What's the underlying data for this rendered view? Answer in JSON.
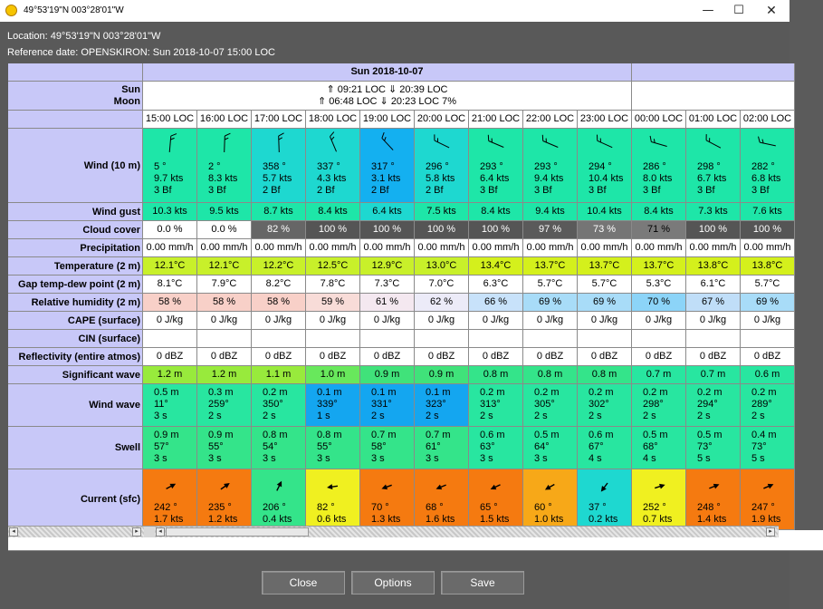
{
  "window": {
    "title": "49°53'19\"N  003°28'01\"W",
    "icon": "sun-icon",
    "controls": {
      "minimize": "—",
      "maximize": "☐",
      "close": "✕"
    }
  },
  "info": {
    "location": "Location:  49°53'19\"N  003°28'01\"W",
    "reference": "Reference date: OPENSKIRON: Sun 2018-10-07 15:00 LOC"
  },
  "table": {
    "day_header": "Sun 2018-10-07",
    "sun_label": "Sun",
    "moon_label": "Moon",
    "sun_text": "⇑ 09:21 LOC ⇓ 20:39 LOC",
    "moon_text": "⇑ 06:48 LOC ⇓ 20:23 LOC   7%",
    "row_labels": {
      "wind": "Wind (10 m)",
      "gust": "Wind gust",
      "cloud": "Cloud cover",
      "precip": "Precipitation",
      "temp": "Temperature (2 m)",
      "gap": "Gap temp-dew point (2 m)",
      "rh": "Relative humidity (2 m)",
      "cape": "CAPE (surface)",
      "cin": "CIN (surface)",
      "refl": "Reflectivity (entire atmos)",
      "sigwave": "Significant wave",
      "windwave": "Wind wave",
      "swell": "Swell",
      "current": "Current (sfc)"
    },
    "columns": [
      {
        "time": "15:00 LOC",
        "wind": {
          "dir": "5 °",
          "speed": "9.7  kts",
          "bf": "3 Bf",
          "deg": 5,
          "bg": "#1ee6a8"
        },
        "gust": {
          "v": "10.3  kts",
          "bg": "#1ee6a8"
        },
        "cloud": {
          "v": "0.0 %",
          "bg": "#ffffff"
        },
        "precip": "0.00 mm/h",
        "temp": {
          "v": "12.1°C",
          "bg": "#c8f02a"
        },
        "gap": "8.1°C",
        "rh": {
          "v": "58 %",
          "bg": "#f8d0c8"
        },
        "cape": "0 J/kg",
        "cin": "",
        "refl": "0 dBZ",
        "sigwave": {
          "v": "1.2 m",
          "bg": "#98ea3c"
        },
        "windwave": {
          "h": "0.5 m",
          "d": "11°",
          "p": "3 s",
          "bg": "#28e6a0"
        },
        "swell": {
          "h": "0.9 m",
          "d": "57°",
          "p": "3 s",
          "bg": "#34e48a"
        },
        "current": {
          "d": "242 °",
          "s": "1.7  kts",
          "deg": 242,
          "bg": "#f57a10"
        }
      },
      {
        "time": "16:00 LOC",
        "wind": {
          "dir": "2 °",
          "speed": "8.3  kts",
          "bf": "3 Bf",
          "deg": 2,
          "bg": "#1ee6a8"
        },
        "gust": {
          "v": "9.5  kts",
          "bg": "#1ee6a8"
        },
        "cloud": {
          "v": "0.0 %",
          "bg": "#ffffff"
        },
        "precip": "0.00 mm/h",
        "temp": {
          "v": "12.1°C",
          "bg": "#c8f02a"
        },
        "gap": "7.9°C",
        "rh": {
          "v": "58 %",
          "bg": "#f8d0c8"
        },
        "cape": "0 J/kg",
        "cin": "",
        "refl": "0 dBZ",
        "sigwave": {
          "v": "1.2 m",
          "bg": "#98ea3c"
        },
        "windwave": {
          "h": "0.3 m",
          "d": "259°",
          "p": "2 s",
          "bg": "#28e6a0"
        },
        "swell": {
          "h": "0.9 m",
          "d": "55°",
          "p": "3 s",
          "bg": "#34e48a"
        },
        "current": {
          "d": "235 °",
          "s": "1.2  kts",
          "deg": 235,
          "bg": "#f57a10"
        }
      },
      {
        "time": "17:00 LOC",
        "wind": {
          "dir": "358 °",
          "speed": "5.7  kts",
          "bf": "2 Bf",
          "deg": 358,
          "bg": "#1ed8d0"
        },
        "gust": {
          "v": "8.7  kts",
          "bg": "#1ee6a8"
        },
        "cloud": {
          "v": "82 %",
          "bg": "#666666",
          "fg": "#ffffff"
        },
        "precip": "0.00 mm/h",
        "temp": {
          "v": "12.2°C",
          "bg": "#c8f02a"
        },
        "gap": "8.2°C",
        "rh": {
          "v": "58 %",
          "bg": "#f8d0c8"
        },
        "cape": "0 J/kg",
        "cin": "",
        "refl": "0 dBZ",
        "sigwave": {
          "v": "1.1 m",
          "bg": "#98ea3c"
        },
        "windwave": {
          "h": "0.2 m",
          "d": "350°",
          "p": "2 s",
          "bg": "#28e6a0"
        },
        "swell": {
          "h": "0.8 m",
          "d": "54°",
          "p": "3 s",
          "bg": "#34e48a"
        },
        "current": {
          "d": "206 °",
          "s": "0.4  kts",
          "deg": 206,
          "bg": "#34e48a"
        }
      },
      {
        "time": "18:00 LOC",
        "wind": {
          "dir": "337 °",
          "speed": "4.3  kts",
          "bf": "2 Bf",
          "deg": 337,
          "bg": "#1ed8d0"
        },
        "gust": {
          "v": "8.4  kts",
          "bg": "#1ee6a8"
        },
        "cloud": {
          "v": "100 %",
          "bg": "#555555",
          "fg": "#ffffff"
        },
        "precip": "0.00 mm/h",
        "temp": {
          "v": "12.5°C",
          "bg": "#c8f02a"
        },
        "gap": "7.8°C",
        "rh": {
          "v": "59 %",
          "bg": "#f8dcd8"
        },
        "cape": "0 J/kg",
        "cin": "",
        "refl": "0 dBZ",
        "sigwave": {
          "v": "1.0 m",
          "bg": "#68e85c"
        },
        "windwave": {
          "h": "0.1 m",
          "d": "339°",
          "p": "1 s",
          "bg": "#14a6f0"
        },
        "swell": {
          "h": "0.8 m",
          "d": "55°",
          "p": "3 s",
          "bg": "#34e48a"
        },
        "current": {
          "d": "82 °",
          "s": "0.6  kts",
          "deg": 82,
          "bg": "#f0f020"
        }
      },
      {
        "time": "19:00 LOC",
        "wind": {
          "dir": "317 °",
          "speed": "3.1  kts",
          "bf": "2 Bf",
          "deg": 317,
          "bg": "#14b0f0"
        },
        "gust": {
          "v": "6.4  kts",
          "bg": "#1ed8d0"
        },
        "cloud": {
          "v": "100 %",
          "bg": "#555555",
          "fg": "#ffffff"
        },
        "precip": "0.00 mm/h",
        "temp": {
          "v": "12.9°C",
          "bg": "#c8f02a"
        },
        "gap": "7.3°C",
        "rh": {
          "v": "61 %",
          "bg": "#f4e8f0"
        },
        "cape": "0 J/kg",
        "cin": "",
        "refl": "0 dBZ",
        "sigwave": {
          "v": "0.9 m",
          "bg": "#40e27a"
        },
        "windwave": {
          "h": "0.1 m",
          "d": "331°",
          "p": "2 s",
          "bg": "#14a6f0"
        },
        "swell": {
          "h": "0.7 m",
          "d": "58°",
          "p": "3 s",
          "bg": "#34e48a"
        },
        "current": {
          "d": "70 °",
          "s": "1.3  kts",
          "deg": 70,
          "bg": "#f57a10"
        }
      },
      {
        "time": "20:00 LOC",
        "wind": {
          "dir": "296 °",
          "speed": "5.8  kts",
          "bf": "2 Bf",
          "deg": 296,
          "bg": "#1ed8d0"
        },
        "gust": {
          "v": "7.5  kts",
          "bg": "#1ee6a8"
        },
        "cloud": {
          "v": "100 %",
          "bg": "#555555",
          "fg": "#ffffff"
        },
        "precip": "0.00 mm/h",
        "temp": {
          "v": "13.0°C",
          "bg": "#c8f02a"
        },
        "gap": "7.0°C",
        "rh": {
          "v": "62 %",
          "bg": "#ecebf8"
        },
        "cape": "0 J/kg",
        "cin": "",
        "refl": "0 dBZ",
        "sigwave": {
          "v": "0.9 m",
          "bg": "#40e27a"
        },
        "windwave": {
          "h": "0.1 m",
          "d": "323°",
          "p": "2 s",
          "bg": "#14a6f0"
        },
        "swell": {
          "h": "0.7 m",
          "d": "61°",
          "p": "3 s",
          "bg": "#34e48a"
        },
        "current": {
          "d": "68 °",
          "s": "1.6  kts",
          "deg": 68,
          "bg": "#f57a10"
        }
      },
      {
        "time": "21:00 LOC",
        "wind": {
          "dir": "293 °",
          "speed": "6.4  kts",
          "bf": "3 Bf",
          "deg": 293,
          "bg": "#1ee6a8"
        },
        "gust": {
          "v": "8.4  kts",
          "bg": "#1ee6a8"
        },
        "cloud": {
          "v": "100 %",
          "bg": "#555555",
          "fg": "#ffffff"
        },
        "precip": "0.00 mm/h",
        "temp": {
          "v": "13.4°C",
          "bg": "#d4f01c"
        },
        "gap": "6.3°C",
        "rh": {
          "v": "66 %",
          "bg": "#c8e2fa"
        },
        "cape": "0 J/kg",
        "cin": "",
        "refl": "0 dBZ",
        "sigwave": {
          "v": "0.8 m",
          "bg": "#34e48a"
        },
        "windwave": {
          "h": "0.2 m",
          "d": "313°",
          "p": "2 s",
          "bg": "#28e6a0"
        },
        "swell": {
          "h": "0.6 m",
          "d": "63°",
          "p": "3 s",
          "bg": "#28e6a0"
        },
        "current": {
          "d": "65 °",
          "s": "1.5  kts",
          "deg": 65,
          "bg": "#f57a10"
        }
      },
      {
        "time": "22:00 LOC",
        "wind": {
          "dir": "293 °",
          "speed": "9.4  kts",
          "bf": "3 Bf",
          "deg": 293,
          "bg": "#1ee6a8"
        },
        "gust": {
          "v": "9.4  kts",
          "bg": "#1ee6a8"
        },
        "cloud": {
          "v": "97 %",
          "bg": "#5a5a5a",
          "fg": "#ffffff"
        },
        "precip": "0.00 mm/h",
        "temp": {
          "v": "13.7°C",
          "bg": "#d4f01c"
        },
        "gap": "5.7°C",
        "rh": {
          "v": "69 %",
          "bg": "#a8dcf8"
        },
        "cape": "0 J/kg",
        "cin": "",
        "refl": "0 dBZ",
        "sigwave": {
          "v": "0.8 m",
          "bg": "#34e48a"
        },
        "windwave": {
          "h": "0.2 m",
          "d": "305°",
          "p": "2 s",
          "bg": "#28e6a0"
        },
        "swell": {
          "h": "0.5 m",
          "d": "64°",
          "p": "3 s",
          "bg": "#28e6a0"
        },
        "current": {
          "d": "60 °",
          "s": "1.0  kts",
          "deg": 60,
          "bg": "#f7a818"
        }
      },
      {
        "time": "23:00 LOC",
        "wind": {
          "dir": "294 °",
          "speed": "10.4  kts",
          "bf": "3 Bf",
          "deg": 294,
          "bg": "#1ee6a8"
        },
        "gust": {
          "v": "10.4  kts",
          "bg": "#1ee6a8"
        },
        "cloud": {
          "v": "73 %",
          "bg": "#757575",
          "fg": "#ffffff"
        },
        "precip": "0.00 mm/h",
        "temp": {
          "v": "13.7°C",
          "bg": "#d4f01c"
        },
        "gap": "5.7°C",
        "rh": {
          "v": "69 %",
          "bg": "#a8dcf8"
        },
        "cape": "0 J/kg",
        "cin": "",
        "refl": "0 dBZ",
        "sigwave": {
          "v": "0.8 m",
          "bg": "#34e48a"
        },
        "windwave": {
          "h": "0.2 m",
          "d": "302°",
          "p": "2 s",
          "bg": "#28e6a0"
        },
        "swell": {
          "h": "0.6 m",
          "d": "67°",
          "p": "4 s",
          "bg": "#28e6a0"
        },
        "current": {
          "d": "37 °",
          "s": "0.2  kts",
          "deg": 37,
          "bg": "#1ed8d0"
        }
      },
      {
        "time": "00:00 LOC",
        "wind": {
          "dir": "286 °",
          "speed": "8.0  kts",
          "bf": "3 Bf",
          "deg": 286,
          "bg": "#1ee6a8"
        },
        "gust": {
          "v": "8.4  kts",
          "bg": "#1ee6a8"
        },
        "cloud": {
          "v": "71 %",
          "bg": "#7a7a7a",
          "fg": "#000000"
        },
        "precip": "0.00 mm/h",
        "temp": {
          "v": "13.7°C",
          "bg": "#d4f01c"
        },
        "gap": "5.3°C",
        "rh": {
          "v": "70 %",
          "bg": "#8cd4f8"
        },
        "cape": "0 J/kg",
        "cin": "",
        "refl": "0 dBZ",
        "sigwave": {
          "v": "0.7 m",
          "bg": "#28e6a0"
        },
        "windwave": {
          "h": "0.2 m",
          "d": "298°",
          "p": "2 s",
          "bg": "#28e6a0"
        },
        "swell": {
          "h": "0.5 m",
          "d": "68°",
          "p": "4 s",
          "bg": "#28e6a0"
        },
        "current": {
          "d": "252 °",
          "s": "0.7  kts",
          "deg": 252,
          "bg": "#f0f020"
        }
      },
      {
        "time": "01:00 LOC",
        "wind": {
          "dir": "298 °",
          "speed": "6.7  kts",
          "bf": "3 Bf",
          "deg": 298,
          "bg": "#1ee6a8"
        },
        "gust": {
          "v": "7.3  kts",
          "bg": "#1ee6a8"
        },
        "cloud": {
          "v": "100 %",
          "bg": "#555555",
          "fg": "#ffffff"
        },
        "precip": "0.00 mm/h",
        "temp": {
          "v": "13.8°C",
          "bg": "#d4f01c"
        },
        "gap": "6.1°C",
        "rh": {
          "v": "67 %",
          "bg": "#c0def8"
        },
        "cape": "0 J/kg",
        "cin": "",
        "refl": "0 dBZ",
        "sigwave": {
          "v": "0.7 m",
          "bg": "#28e6a0"
        },
        "windwave": {
          "h": "0.2 m",
          "d": "294°",
          "p": "2 s",
          "bg": "#28e6a0"
        },
        "swell": {
          "h": "0.5 m",
          "d": "73°",
          "p": "5 s",
          "bg": "#28e6a0"
        },
        "current": {
          "d": "248 °",
          "s": "1.4  kts",
          "deg": 248,
          "bg": "#f57a10"
        }
      },
      {
        "time": "02:00 LOC",
        "wind": {
          "dir": "282 °",
          "speed": "6.8  kts",
          "bf": "3 Bf",
          "deg": 282,
          "bg": "#1ee6a8"
        },
        "gust": {
          "v": "7.6  kts",
          "bg": "#1ee6a8"
        },
        "cloud": {
          "v": "100 %",
          "bg": "#555555",
          "fg": "#ffffff"
        },
        "precip": "0.00 mm/h",
        "temp": {
          "v": "13.8°C",
          "bg": "#d4f01c"
        },
        "gap": "5.7°C",
        "rh": {
          "v": "69 %",
          "bg": "#a8dcf8"
        },
        "cape": "0 J/kg",
        "cin": "",
        "refl": "0 dBZ",
        "sigwave": {
          "v": "0.6 m",
          "bg": "#28e6a0"
        },
        "windwave": {
          "h": "0.2 m",
          "d": "289°",
          "p": "2 s",
          "bg": "#28e6a0"
        },
        "swell": {
          "h": "0.4 m",
          "d": "73°",
          "p": "5 s",
          "bg": "#28e6a0"
        },
        "current": {
          "d": "247 °",
          "s": "1.9  kts",
          "deg": 247,
          "bg": "#f57a10"
        }
      }
    ]
  },
  "buttons": {
    "close": "Close",
    "options": "Options",
    "save": "Save"
  },
  "scroll": {
    "left_arrow": "◂",
    "right_arrow": "▸"
  }
}
